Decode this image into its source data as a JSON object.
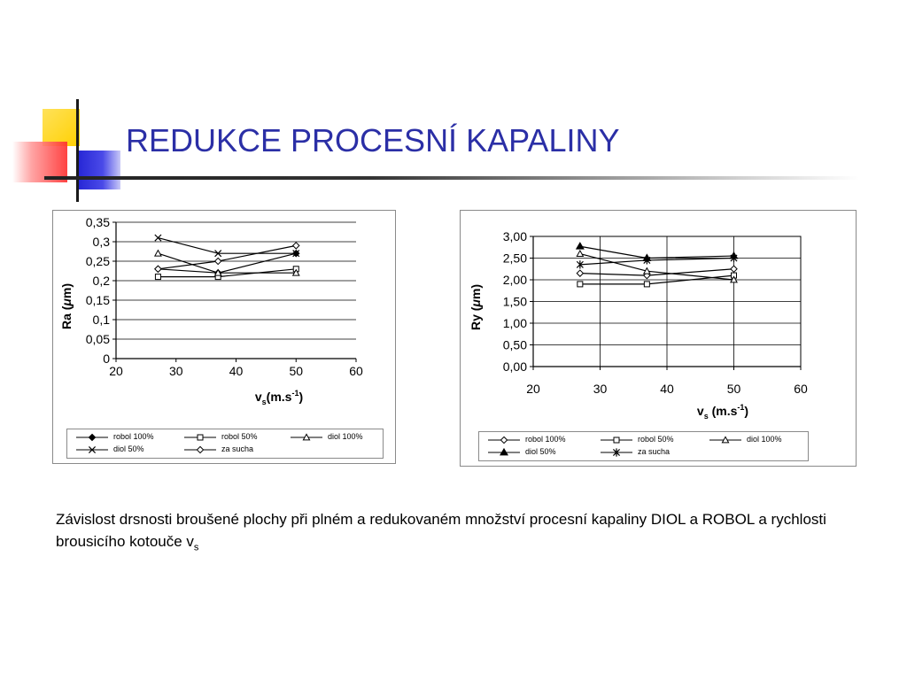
{
  "slide": {
    "title": "REDUKCE PROCESNÍ KAPALINY",
    "caption_text": "Závislost drsnosti broušené plochy při plném a redukovaném množství procesní kapaliny  DIOL a ROBOL  a rychlosti brousicího kotouče v",
    "caption_subscript": "s"
  },
  "colors": {
    "title": "#2b2fa6",
    "deco_yellow": "#ffd400",
    "deco_red": "#ff3a3a",
    "deco_blue": "#2a2ad6",
    "series_line": "#000000"
  },
  "chart_data": [
    {
      "type": "line",
      "ylabel_main": "Ra (",
      "ylabel_mu": "μ",
      "ylabel_end": "m)",
      "xlabel_main": "v",
      "xlabel_sub": "s",
      "xlabel_rest": "(m.s",
      "xlabel_sup": "-1",
      "xlabel_close": ")",
      "xlim": [
        20,
        60
      ],
      "ylim": [
        0,
        0.35
      ],
      "xticks": [
        "20",
        "30",
        "40",
        "50",
        "60"
      ],
      "yticks": [
        "0",
        "0,05",
        "0,1",
        "0,15",
        "0,2",
        "0,25",
        "0,3",
        "0,35"
      ],
      "grid": "horizontal",
      "legend_position": "bottom",
      "x": [
        27,
        37,
        50
      ],
      "series": [
        {
          "name": "robol 100%",
          "marker": "diamond-filled",
          "values": [
            0.23,
            0.22,
            0.27
          ]
        },
        {
          "name": "robol 50%",
          "marker": "square-open",
          "values": [
            0.21,
            0.21,
            0.23
          ]
        },
        {
          "name": "diol 100%",
          "marker": "triangle-open",
          "values": [
            0.27,
            0.22,
            0.22
          ]
        },
        {
          "name": "diol 50%",
          "marker": "x",
          "values": [
            0.31,
            0.27,
            0.27
          ]
        },
        {
          "name": "za sucha",
          "marker": "diamond-open",
          "values": [
            0.23,
            0.25,
            0.29
          ]
        }
      ]
    },
    {
      "type": "line",
      "ylabel_main": "Ry (",
      "ylabel_mu": "μ",
      "ylabel_end": "m)",
      "xlabel_main": "v",
      "xlabel_sub": "s",
      "xlabel_rest": " (m.s",
      "xlabel_sup": "-1",
      "xlabel_close": ")",
      "xlim": [
        20,
        60
      ],
      "ylim": [
        0,
        3.0
      ],
      "xticks": [
        "20",
        "30",
        "40",
        "50",
        "60"
      ],
      "yticks": [
        "0,00",
        "0,50",
        "1,00",
        "1,50",
        "2,00",
        "2,50",
        "3,00"
      ],
      "grid": "both",
      "legend_position": "bottom",
      "x": [
        27,
        37,
        50
      ],
      "series": [
        {
          "name": "robol 100%",
          "marker": "diamond-open",
          "values": [
            2.15,
            2.1,
            2.25
          ]
        },
        {
          "name": "robol 50%",
          "marker": "square-open",
          "values": [
            1.9,
            1.9,
            2.1
          ]
        },
        {
          "name": "diol 100%",
          "marker": "triangle-open",
          "values": [
            2.6,
            2.2,
            2.0
          ]
        },
        {
          "name": "diol 50%",
          "marker": "triangle-filled",
          "values": [
            2.77,
            2.5,
            2.55
          ]
        },
        {
          "name": "za sucha",
          "marker": "asterisk",
          "values": [
            2.35,
            2.45,
            2.5
          ]
        }
      ]
    }
  ]
}
